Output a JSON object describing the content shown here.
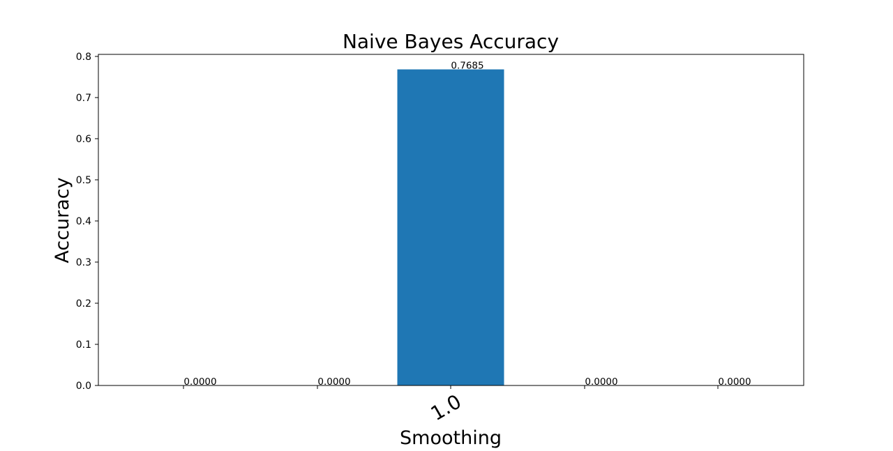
{
  "chart_data": {
    "type": "bar",
    "title": "Naive Bayes Accuracy",
    "xlabel": "Smoothing",
    "ylabel": "Accuracy",
    "categories": [
      "",
      "",
      "1.0",
      "",
      ""
    ],
    "values": [
      0.0,
      0.0,
      0.7685,
      0.0,
      0.0
    ],
    "data_labels": [
      "0.0000",
      "0.0000",
      "0.7685",
      "0.0000",
      "0.0000"
    ],
    "ylim": [
      0,
      0.805
    ],
    "yticks": [
      0.0,
      0.1,
      0.2,
      0.3,
      0.4,
      0.5,
      0.6,
      0.7,
      0.8
    ],
    "ytick_labels": [
      "0.0",
      "0.1",
      "0.2",
      "0.3",
      "0.4",
      "0.5",
      "0.6",
      "0.7",
      "0.8"
    ],
    "grid": false,
    "bar_color": "#1f77b4"
  }
}
